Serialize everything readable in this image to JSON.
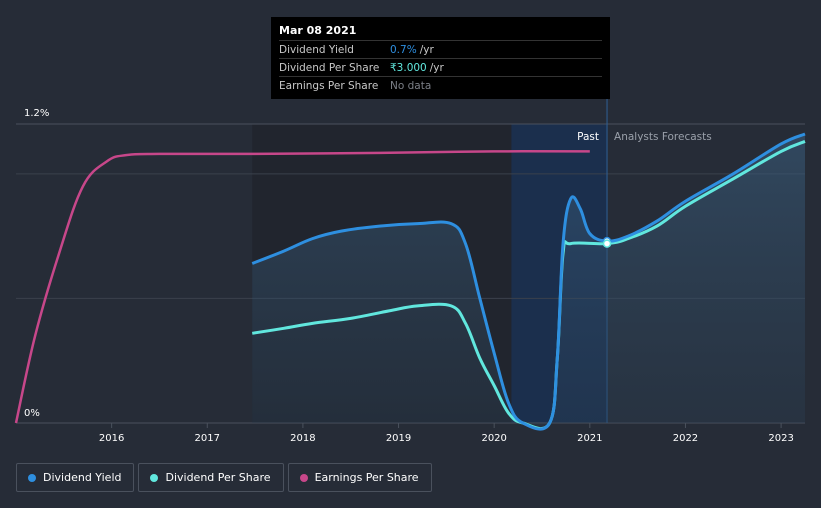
{
  "tooltip": {
    "date": "Mar 08 2021",
    "rows": [
      {
        "label": "Dividend Yield",
        "value": "0.7%",
        "unit": "/yr",
        "color": "#2e8fe0"
      },
      {
        "label": "Dividend Per Share",
        "value": "₹3.000",
        "unit": "/yr",
        "color": "#61e7de"
      },
      {
        "label": "Earnings Per Share",
        "value": "No data",
        "unit": "",
        "color": "#7b7f87"
      }
    ]
  },
  "regions": {
    "past": "Past",
    "forecast": "Analysts Forecasts"
  },
  "legend": [
    {
      "label": "Dividend Yield",
      "color": "#2e8fe0"
    },
    {
      "label": "Dividend Per Share",
      "color": "#61e7de"
    },
    {
      "label": "Earnings Per Share",
      "color": "#c7478a"
    }
  ],
  "chart_data": {
    "type": "line",
    "x_ticks": [
      "2016",
      "2017",
      "2018",
      "2019",
      "2020",
      "2021",
      "2022",
      "2023"
    ],
    "y_ticks": [
      "1.2%",
      "0%"
    ],
    "ylim": [
      0,
      1.2
    ],
    "xlim": [
      2015.0,
      2023.25
    ],
    "past_end": 2021.18,
    "series": [
      {
        "name": "Dividend Yield",
        "color": "#2e8fe0",
        "points": [
          [
            2017.47,
            0.64
          ],
          [
            2017.8,
            0.69
          ],
          [
            2018.1,
            0.74
          ],
          [
            2018.4,
            0.77
          ],
          [
            2018.8,
            0.79
          ],
          [
            2019.2,
            0.8
          ],
          [
            2019.55,
            0.8
          ],
          [
            2019.7,
            0.72
          ],
          [
            2019.85,
            0.5
          ],
          [
            2020.0,
            0.28
          ],
          [
            2020.15,
            0.08
          ],
          [
            2020.3,
            0.0
          ],
          [
            2020.58,
            0.0
          ],
          [
            2020.66,
            0.26
          ],
          [
            2020.72,
            0.72
          ],
          [
            2020.8,
            0.9
          ],
          [
            2020.9,
            0.86
          ],
          [
            2021.0,
            0.76
          ],
          [
            2021.18,
            0.73
          ],
          [
            2021.4,
            0.75
          ],
          [
            2021.7,
            0.81
          ],
          [
            2022.0,
            0.89
          ],
          [
            2022.5,
            1.0
          ],
          [
            2023.0,
            1.12
          ],
          [
            2023.25,
            1.16
          ]
        ]
      },
      {
        "name": "Dividend Per Share",
        "color": "#61e7de",
        "points": [
          [
            2017.47,
            0.36
          ],
          [
            2017.8,
            0.38
          ],
          [
            2018.1,
            0.4
          ],
          [
            2018.5,
            0.42
          ],
          [
            2018.9,
            0.45
          ],
          [
            2019.2,
            0.47
          ],
          [
            2019.55,
            0.47
          ],
          [
            2019.7,
            0.4
          ],
          [
            2019.85,
            0.26
          ],
          [
            2020.0,
            0.15
          ],
          [
            2020.15,
            0.04
          ],
          [
            2020.3,
            0.0
          ],
          [
            2020.58,
            0.0
          ],
          [
            2020.66,
            0.26
          ],
          [
            2020.72,
            0.68
          ],
          [
            2020.8,
            0.72
          ],
          [
            2021.18,
            0.72
          ],
          [
            2021.4,
            0.74
          ],
          [
            2021.7,
            0.79
          ],
          [
            2022.0,
            0.87
          ],
          [
            2022.5,
            0.98
          ],
          [
            2023.0,
            1.09
          ],
          [
            2023.25,
            1.13
          ]
        ]
      },
      {
        "name": "Earnings Per Share",
        "color": "#c7478a",
        "points": [
          [
            2015.0,
            0.0
          ],
          [
            2015.2,
            0.35
          ],
          [
            2015.45,
            0.68
          ],
          [
            2015.7,
            0.95
          ],
          [
            2015.95,
            1.05
          ],
          [
            2016.15,
            1.075
          ],
          [
            2016.5,
            1.08
          ],
          [
            2017.5,
            1.08
          ],
          [
            2019.0,
            1.085
          ],
          [
            2020.0,
            1.09
          ],
          [
            2021.0,
            1.09
          ]
        ]
      }
    ]
  }
}
